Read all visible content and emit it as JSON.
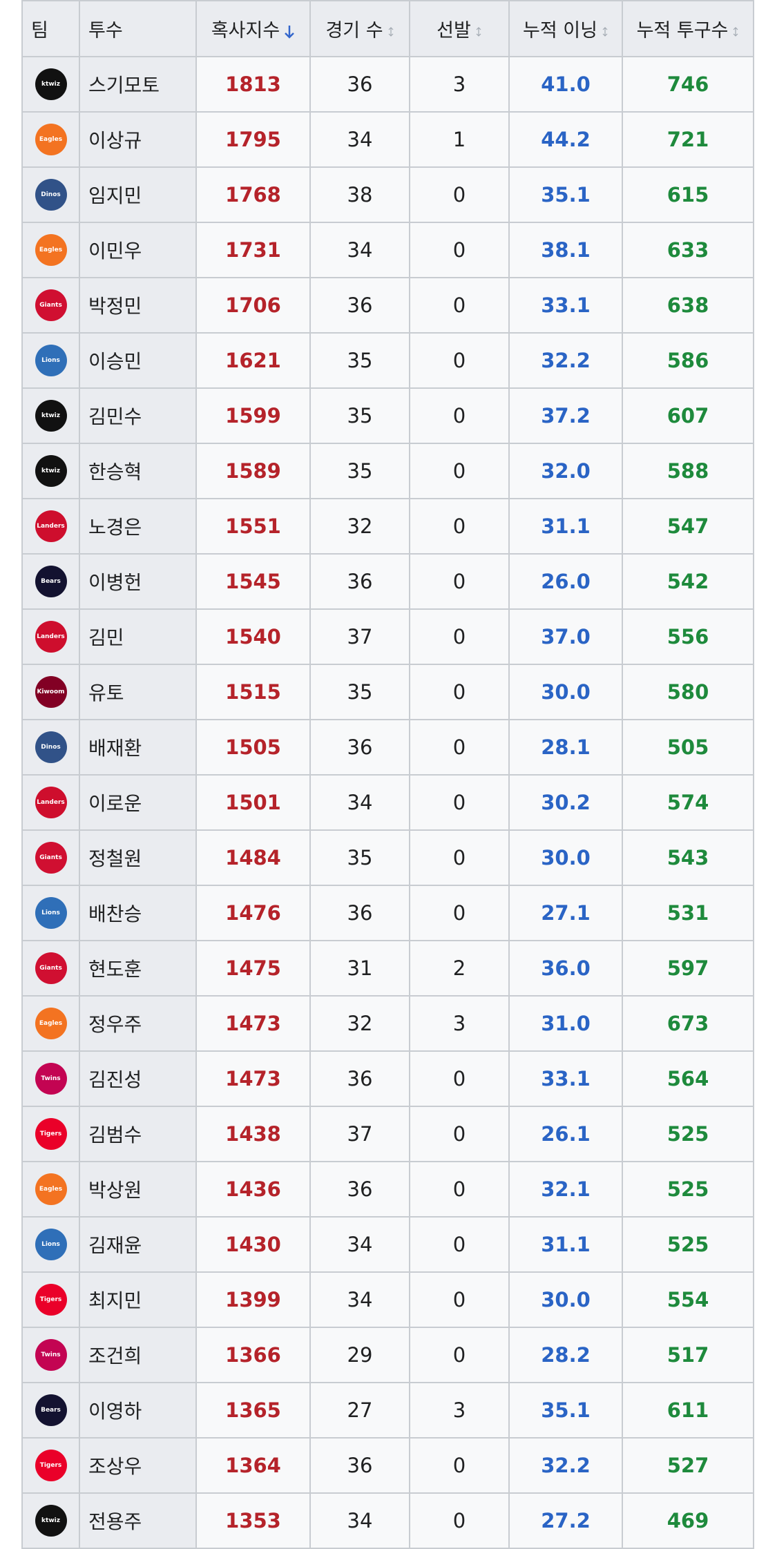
{
  "table": {
    "columns": [
      "팀",
      "투수",
      "혹사지수",
      "경기 수",
      "선발",
      "누적 이닝",
      "누적 투구수"
    ],
    "sorted_column": 2,
    "rows": [
      [
        {
          "label": "ktwiz",
          "color": "#111111"
        },
        "스기모토",
        "1813",
        "36",
        "3",
        "41.0",
        "746"
      ],
      [
        {
          "label": "Eagles",
          "color": "#f37321"
        },
        "이상규",
        "1795",
        "34",
        "1",
        "44.2",
        "721"
      ],
      [
        {
          "label": "Dinos",
          "color": "#315288"
        },
        "임지민",
        "1768",
        "38",
        "0",
        "35.1",
        "615"
      ],
      [
        {
          "label": "Eagles",
          "color": "#f37321"
        },
        "이민우",
        "1731",
        "34",
        "0",
        "38.1",
        "633"
      ],
      [
        {
          "label": "Giants",
          "color": "#d00f31"
        },
        "박정민",
        "1706",
        "36",
        "0",
        "33.1",
        "638"
      ],
      [
        {
          "label": "Lions",
          "color": "#2f6fb8"
        },
        "이승민",
        "1621",
        "35",
        "0",
        "32.2",
        "586"
      ],
      [
        {
          "label": "ktwiz",
          "color": "#111111"
        },
        "김민수",
        "1599",
        "35",
        "0",
        "37.2",
        "607"
      ],
      [
        {
          "label": "ktwiz",
          "color": "#111111"
        },
        "한승혁",
        "1589",
        "35",
        "0",
        "32.0",
        "588"
      ],
      [
        {
          "label": "Landers",
          "color": "#ce0e2d"
        },
        "노경은",
        "1551",
        "32",
        "0",
        "31.1",
        "547"
      ],
      [
        {
          "label": "Bears",
          "color": "#131230"
        },
        "이병헌",
        "1545",
        "36",
        "0",
        "26.0",
        "542"
      ],
      [
        {
          "label": "Landers",
          "color": "#ce0e2d"
        },
        "김민",
        "1540",
        "37",
        "0",
        "37.0",
        "556"
      ],
      [
        {
          "label": "Kiwoom",
          "color": "#820024"
        },
        "유토",
        "1515",
        "35",
        "0",
        "30.0",
        "580"
      ],
      [
        {
          "label": "Dinos",
          "color": "#315288"
        },
        "배재환",
        "1505",
        "36",
        "0",
        "28.1",
        "505"
      ],
      [
        {
          "label": "Landers",
          "color": "#ce0e2d"
        },
        "이로운",
        "1501",
        "34",
        "0",
        "30.2",
        "574"
      ],
      [
        {
          "label": "Giants",
          "color": "#d00f31"
        },
        "정철원",
        "1484",
        "35",
        "0",
        "30.0",
        "543"
      ],
      [
        {
          "label": "Lions",
          "color": "#2f6fb8"
        },
        "배찬승",
        "1476",
        "36",
        "0",
        "27.1",
        "531"
      ],
      [
        {
          "label": "Giants",
          "color": "#d00f31"
        },
        "현도훈",
        "1475",
        "31",
        "2",
        "36.0",
        "597"
      ],
      [
        {
          "label": "Eagles",
          "color": "#f37321"
        },
        "정우주",
        "1473",
        "32",
        "3",
        "31.0",
        "673"
      ],
      [
        {
          "label": "Twins",
          "color": "#c30452"
        },
        "김진성",
        "1473",
        "36",
        "0",
        "33.1",
        "564"
      ],
      [
        {
          "label": "Tigers",
          "color": "#ea0029"
        },
        "김범수",
        "1438",
        "37",
        "0",
        "26.1",
        "525"
      ],
      [
        {
          "label": "Eagles",
          "color": "#f37321"
        },
        "박상원",
        "1436",
        "36",
        "0",
        "32.1",
        "525"
      ],
      [
        {
          "label": "Lions",
          "color": "#2f6fb8"
        },
        "김재윤",
        "1430",
        "34",
        "0",
        "31.1",
        "525"
      ],
      [
        {
          "label": "Tigers",
          "color": "#ea0029"
        },
        "최지민",
        "1399",
        "34",
        "0",
        "30.0",
        "554"
      ],
      [
        {
          "label": "Twins",
          "color": "#c30452"
        },
        "조건희",
        "1366",
        "29",
        "0",
        "28.2",
        "517"
      ],
      [
        {
          "label": "Bears",
          "color": "#131230"
        },
        "이영하",
        "1365",
        "27",
        "3",
        "35.1",
        "611"
      ],
      [
        {
          "label": "Tigers",
          "color": "#ea0029"
        },
        "조상우",
        "1364",
        "36",
        "0",
        "32.2",
        "527"
      ],
      [
        {
          "label": "ktwiz",
          "color": "#111111"
        },
        "전용주",
        "1353",
        "34",
        "0",
        "27.2",
        "469"
      ]
    ]
  }
}
